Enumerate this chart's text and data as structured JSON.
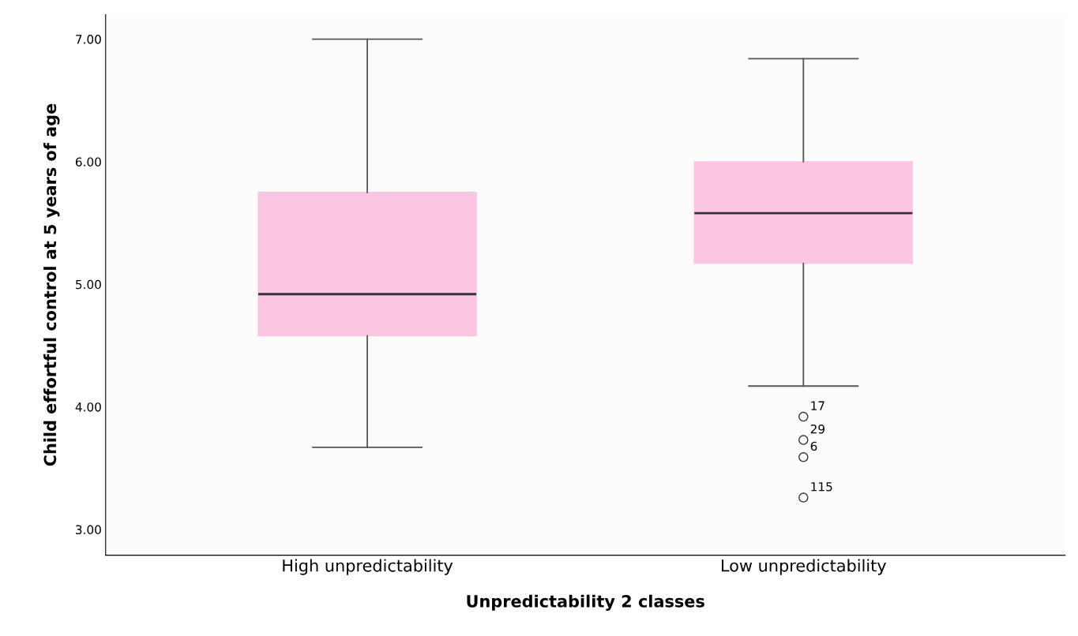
{
  "chart_data": {
    "type": "box",
    "xlabel": "Unpredictability 2 classes",
    "ylabel": "Child effortful control at 5 years of age",
    "categories": [
      "High unpredictability",
      "Low unpredictability"
    ],
    "boxes": [
      {
        "low": 3.67,
        "q1": 4.58,
        "median": 4.92,
        "q3": 5.75,
        "high": 7.0
      },
      {
        "low": 4.17,
        "q1": 5.17,
        "median": 5.58,
        "q3": 6.0,
        "high": 6.84,
        "outliers": [
          3.92,
          3.73,
          3.59,
          3.26
        ]
      }
    ],
    "color": "#fcc5e2",
    "ylim": [
      2.79,
      7.2
    ],
    "yticks": [
      {
        "value": 3,
        "label": "3.00"
      },
      {
        "value": 4,
        "label": "4.00"
      },
      {
        "value": 5,
        "label": "5.00"
      },
      {
        "value": 6,
        "label": "6.00"
      },
      {
        "value": 7,
        "label": "7.00"
      }
    ],
    "annotations": [
      "17",
      "29",
      "6",
      "115"
    ],
    "grid": false,
    "legend": false
  }
}
